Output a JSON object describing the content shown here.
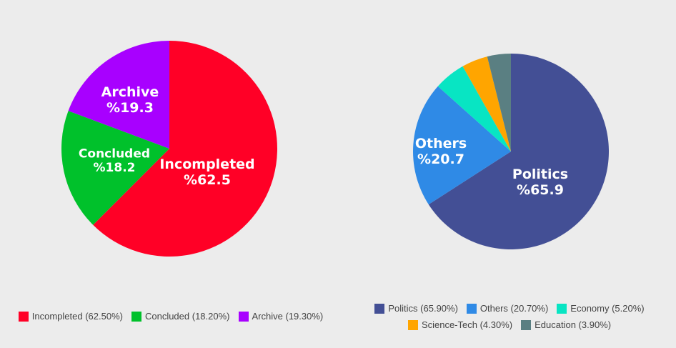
{
  "chart_data": [
    {
      "type": "pie",
      "title": "",
      "slices": [
        {
          "name": "Incompleted",
          "value": 62.5,
          "color": "#ff0026",
          "slice_label_name": "Incompleted",
          "slice_label_value": "%62.5",
          "legend_text": "Incompleted (62.50%)"
        },
        {
          "name": "Concluded",
          "value": 18.2,
          "color": "#00c12b",
          "slice_label_name": "Concluded",
          "slice_label_value": "%18.2",
          "legend_text": "Concluded (18.20%)"
        },
        {
          "name": "Archive",
          "value": 19.3,
          "color": "#a800ff",
          "slice_label_name": "Archive",
          "slice_label_value": "%19.3",
          "legend_text": "Archive (19.30%)"
        }
      ],
      "legend_position": "bottom"
    },
    {
      "type": "pie",
      "title": "",
      "slices": [
        {
          "name": "Politics",
          "value": 65.9,
          "color": "#434f95",
          "slice_label_name": "Politics",
          "slice_label_value": "%65.9",
          "legend_text": "Politics (65.90%)"
        },
        {
          "name": "Others",
          "value": 20.7,
          "color": "#2f8ae6",
          "slice_label_name": "Others",
          "slice_label_value": "%20.7",
          "legend_text": "Others (20.70%)"
        },
        {
          "name": "Economy",
          "value": 5.2,
          "color": "#08e5c3",
          "slice_label_name": "",
          "slice_label_value": "",
          "legend_text": "Economy (5.20%)"
        },
        {
          "name": "Science-Tech",
          "value": 4.3,
          "color": "#ffa500",
          "slice_label_name": "",
          "slice_label_value": "",
          "legend_text": "Science-Tech (4.30%)"
        },
        {
          "name": "Education",
          "value": 3.9,
          "color": "#5a7f82",
          "slice_label_name": "",
          "slice_label_value": "",
          "legend_text": "Education (3.90%)"
        }
      ],
      "legend_position": "bottom"
    }
  ]
}
